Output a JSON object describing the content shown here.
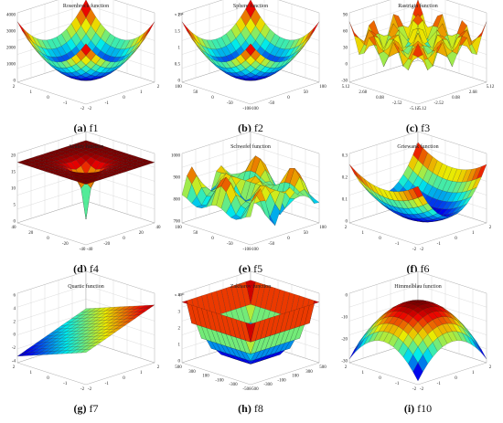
{
  "panels": [
    {
      "id": "f1",
      "letter": "(a)",
      "fn": "f1",
      "title": "Rosenbrock  function",
      "zexp": "",
      "zticks": [
        "4000",
        "3000",
        "2000",
        "1000",
        "0"
      ],
      "lticks": [
        "2",
        "1",
        "0",
        "-1",
        "-2"
      ],
      "rticks": [
        "-2",
        "-1",
        "0",
        "1",
        "2"
      ],
      "surface": "bowl",
      "color_min": "#1a2a9a",
      "color_max": "#d01010"
    },
    {
      "id": "f2",
      "letter": "(b)",
      "fn": "f2",
      "title": "Sphere function",
      "zexp": "x 10⁴",
      "zticks": [
        "2",
        "1.5",
        "1",
        "0.5",
        "0"
      ],
      "lticks": [
        "100",
        "50",
        "0",
        "-50",
        "-100"
      ],
      "rticks": [
        "-100",
        "-50",
        "0",
        "50",
        "100"
      ],
      "surface": "bowl",
      "color_min": "#1020a0",
      "color_max": "#d01010"
    },
    {
      "id": "f3",
      "letter": "(c)",
      "fn": "f3",
      "title": "Rastrigin function",
      "zexp": "",
      "zticks": [
        "90",
        "60",
        "30",
        "0",
        "-30"
      ],
      "lticks": [
        "5.12",
        "2.68",
        "0.08",
        "-2.52",
        "-5.12"
      ],
      "rticks": [
        "-5.12",
        "-2.52",
        "0.08",
        "2.68",
        "5.12"
      ],
      "surface": "egg",
      "color_min": "#2040c0",
      "color_max": "#e02020"
    },
    {
      "id": "f4",
      "letter": "(d)",
      "fn": "f4",
      "title": "Ackley function",
      "zexp": "",
      "zticks": [
        "20",
        "15",
        "10",
        "5",
        "0"
      ],
      "lticks": [
        "40",
        "20",
        "0",
        "-20",
        "-40"
      ],
      "rticks": [
        "-40",
        "-20",
        "0",
        "20",
        "40"
      ],
      "surface": "funnel",
      "color_min": "#1010a0",
      "color_max": "#b01010"
    },
    {
      "id": "f5",
      "letter": "(e)",
      "fn": "f5",
      "title": "Schwefel function",
      "zexp": "",
      "zticks": [
        "1000",
        "900",
        "800",
        "700"
      ],
      "lticks": [
        "100",
        "50",
        "0",
        "-50",
        "-100"
      ],
      "rticks": [
        "-100",
        "-50",
        "0",
        "50",
        "100"
      ],
      "surface": "wave",
      "color_min": "#1020a0",
      "color_max": "#d02010"
    },
    {
      "id": "f6",
      "letter": "(f)",
      "fn": "f6",
      "title": "Griewank  function",
      "zexp": "",
      "zticks": [
        "0.3",
        "0.2",
        "0.1",
        "0"
      ],
      "lticks": [
        "2",
        "1",
        "0",
        "-1",
        "-2"
      ],
      "rticks": [
        "-2",
        "-1",
        "0",
        "1",
        "2"
      ],
      "surface": "valley",
      "color_min": "#1020a0",
      "color_max": "#d02010"
    },
    {
      "id": "f7",
      "letter": "(g)",
      "fn": "f7",
      "title": "Quartic  function",
      "zexp": "",
      "zticks": [
        "6",
        "4",
        "2",
        "0",
        "-2",
        "-4"
      ],
      "lticks": [
        "2",
        "1",
        "0",
        "-1",
        "-2"
      ],
      "rticks": [
        "-2",
        "-1",
        "0",
        "1",
        "2"
      ],
      "surface": "plane",
      "color_min": "#1020a0",
      "color_max": "#d02010"
    },
    {
      "id": "f8",
      "letter": "(h)",
      "fn": "f8",
      "title": "Zakharov  function",
      "zexp": "x 10¹¹",
      "zticks": [
        "4",
        "3",
        "2",
        "1",
        "0"
      ],
      "lticks": [
        "500",
        "300",
        "100",
        "-100",
        "-300",
        "-500"
      ],
      "rticks": [
        "-500",
        "-300",
        "-100",
        "100",
        "300",
        "500"
      ],
      "surface": "spike",
      "color_min": "#1020a0",
      "color_max": "#d02010"
    },
    {
      "id": "f10",
      "letter": "(i)",
      "fn": "f10",
      "title": "Himmelblau function",
      "zexp": "",
      "zticks": [
        "0",
        "-10",
        "-20",
        "-30"
      ],
      "lticks": [
        "2",
        "1",
        "0",
        "-1",
        "-2"
      ],
      "rticks": [
        "-2",
        "-1",
        "0",
        "1",
        "2"
      ],
      "surface": "dome",
      "color_min": "#1020a0",
      "color_max": "#d02010"
    }
  ]
}
